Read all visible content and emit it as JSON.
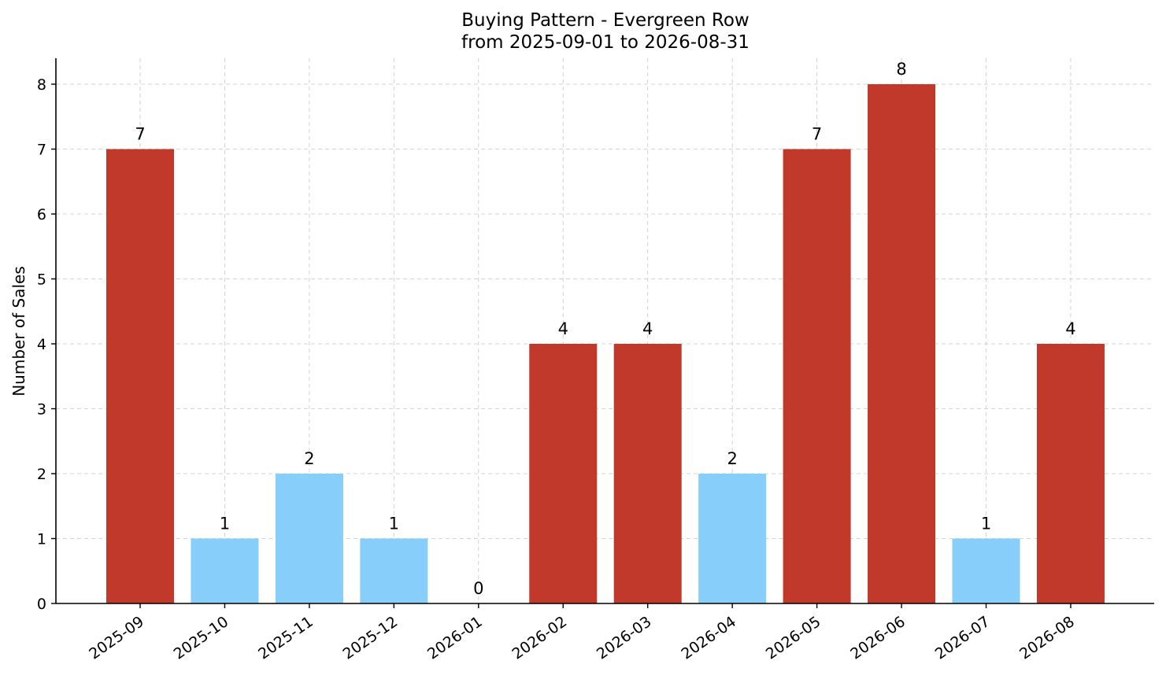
{
  "chart_data": {
    "type": "bar",
    "title_line1": "Buying Pattern - Evergreen Row",
    "title_line2": "from 2025-09-01 to 2026-08-31",
    "xlabel": "",
    "ylabel": "Number of Sales",
    "ylim": [
      0,
      8.4
    ],
    "yticks": [
      0,
      1,
      2,
      3,
      4,
      5,
      6,
      7,
      8
    ],
    "grid": true,
    "categories": [
      "2025-09",
      "2025-10",
      "2025-11",
      "2025-12",
      "2026-01",
      "2026-02",
      "2026-03",
      "2026-04",
      "2026-05",
      "2026-06",
      "2026-07",
      "2026-08"
    ],
    "values": [
      7,
      1,
      2,
      1,
      0,
      4,
      4,
      2,
      7,
      8,
      1,
      4
    ],
    "colors": {
      "high": "#c0392b",
      "low": "#87cefa"
    },
    "bar_colors": [
      "high",
      "low",
      "low",
      "low",
      "low",
      "high",
      "high",
      "low",
      "high",
      "high",
      "low",
      "high"
    ]
  }
}
